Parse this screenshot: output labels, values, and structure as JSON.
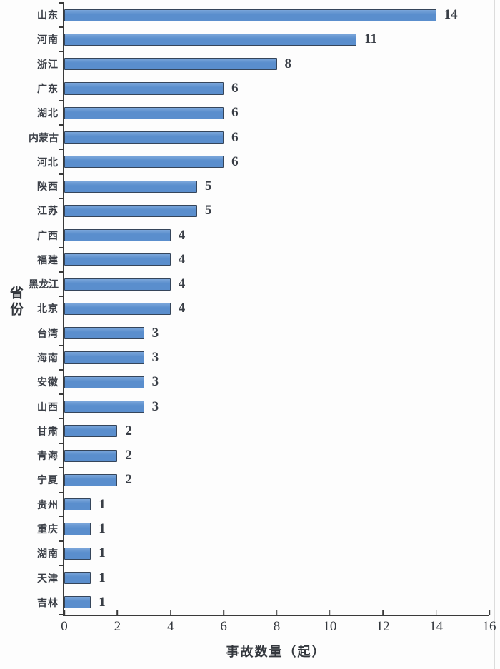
{
  "chart_data": {
    "type": "bar",
    "orientation": "horizontal",
    "title": "",
    "xlabel": "事故数量（起）",
    "ylabel": "省份",
    "xlim": [
      0,
      16
    ],
    "x_ticks": [
      0,
      2,
      4,
      6,
      8,
      10,
      12,
      14,
      16
    ],
    "grid": false,
    "legend": null,
    "categories": [
      "山东",
      "河南",
      "浙江",
      "广东",
      "湖北",
      "内蒙古",
      "河北",
      "陕西",
      "江苏",
      "广西",
      "福建",
      "黑龙江",
      "北京",
      "台湾",
      "海南",
      "安徽",
      "山西",
      "甘肃",
      "青海",
      "宁夏",
      "贵州",
      "重庆",
      "湖南",
      "天津",
      "吉林"
    ],
    "values": [
      14,
      11,
      8,
      6,
      6,
      6,
      6,
      5,
      5,
      4,
      4,
      4,
      4,
      3,
      3,
      3,
      3,
      2,
      2,
      2,
      1,
      1,
      1,
      1,
      1
    ],
    "colors": {
      "bar_fill": "#5a8ecd",
      "bar_border": "#35455a",
      "axis": "#3a3a3a",
      "text": "#33373d"
    }
  }
}
